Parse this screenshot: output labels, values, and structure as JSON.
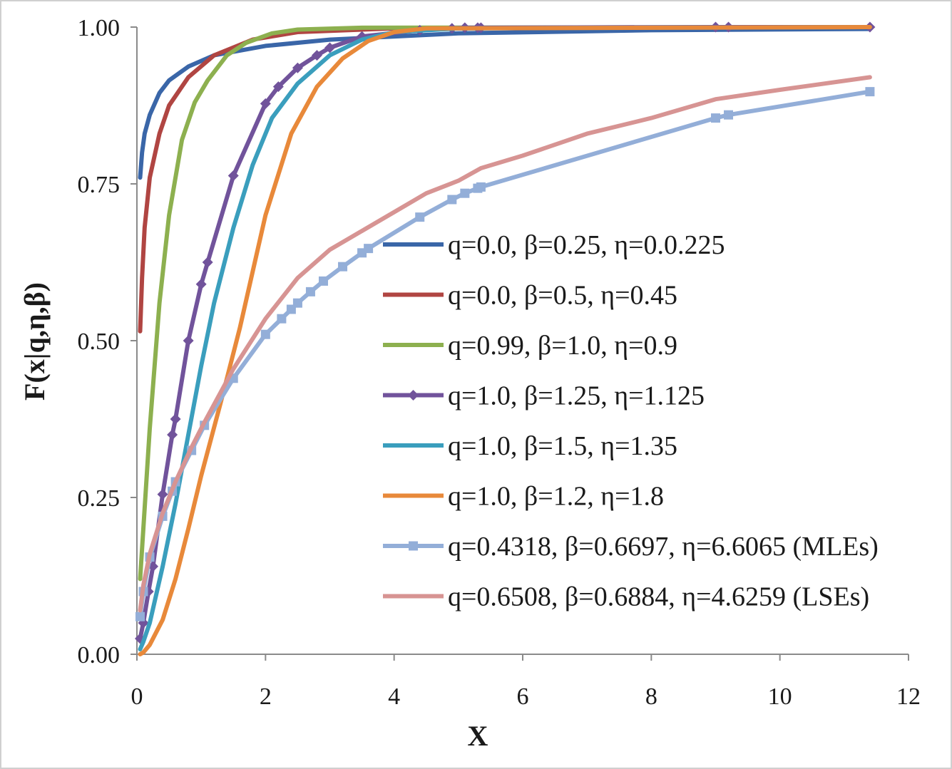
{
  "chart_data": {
    "type": "line",
    "title": "",
    "xlabel": "X",
    "ylabel": "F(x|q,η,β)",
    "xlim": [
      0,
      12
    ],
    "ylim": [
      0,
      1
    ],
    "x_ticks": [
      "0",
      "2",
      "4",
      "6",
      "8",
      "10",
      "12"
    ],
    "y_ticks": [
      "0.00",
      "0.25",
      "0.50",
      "0.75",
      "1.00"
    ],
    "grid": false,
    "legend_position": "center-right",
    "series": [
      {
        "name": "q=0.0, β=0.25, η=0.0.225",
        "color": "#3a66a8",
        "marker": "none",
        "points": [
          [
            0.05,
            0.76
          ],
          [
            0.08,
            0.8
          ],
          [
            0.12,
            0.83
          ],
          [
            0.2,
            0.86
          ],
          [
            0.35,
            0.895
          ],
          [
            0.5,
            0.915
          ],
          [
            0.8,
            0.937
          ],
          [
            1.2,
            0.955
          ],
          [
            2.0,
            0.97
          ],
          [
            3.0,
            0.98
          ],
          [
            5.0,
            0.99
          ],
          [
            8.0,
            0.995
          ],
          [
            11.4,
            0.997
          ]
        ]
      },
      {
        "name": "q=0.0, β=0.5, η=0.45",
        "color": "#b04542",
        "marker": "none",
        "points": [
          [
            0.05,
            0.515
          ],
          [
            0.08,
            0.6
          ],
          [
            0.12,
            0.68
          ],
          [
            0.2,
            0.76
          ],
          [
            0.35,
            0.83
          ],
          [
            0.5,
            0.875
          ],
          [
            0.8,
            0.92
          ],
          [
            1.2,
            0.955
          ],
          [
            1.8,
            0.98
          ],
          [
            2.5,
            0.992
          ],
          [
            4.0,
            0.998
          ],
          [
            11.4,
            1.0
          ]
        ]
      },
      {
        "name": "q=0.99, β=1.0, η=0.9",
        "color": "#8db04f",
        "marker": "none",
        "points": [
          [
            0.05,
            0.12
          ],
          [
            0.1,
            0.2
          ],
          [
            0.2,
            0.36
          ],
          [
            0.35,
            0.56
          ],
          [
            0.5,
            0.7
          ],
          [
            0.7,
            0.82
          ],
          [
            0.9,
            0.88
          ],
          [
            1.1,
            0.915
          ],
          [
            1.4,
            0.955
          ],
          [
            1.7,
            0.975
          ],
          [
            2.1,
            0.99
          ],
          [
            2.5,
            0.996
          ],
          [
            3.5,
            0.999
          ],
          [
            11.4,
            1.0
          ]
        ]
      },
      {
        "name": "q=1.0, β=1.25, η=1.125",
        "color": "#71539b",
        "marker": "diamond",
        "points": [
          [
            0.05,
            0.025
          ],
          [
            0.1,
            0.05
          ],
          [
            0.18,
            0.1
          ],
          [
            0.25,
            0.14
          ],
          [
            0.4,
            0.255
          ],
          [
            0.55,
            0.35
          ],
          [
            0.6,
            0.375
          ],
          [
            0.8,
            0.5
          ],
          [
            1.0,
            0.59
          ],
          [
            1.1,
            0.625
          ],
          [
            1.5,
            0.763
          ],
          [
            2.0,
            0.878
          ],
          [
            2.2,
            0.905
          ],
          [
            2.5,
            0.935
          ],
          [
            2.8,
            0.955
          ],
          [
            3.0,
            0.967
          ],
          [
            3.5,
            0.985
          ],
          [
            4.4,
            0.995
          ],
          [
            4.9,
            0.998
          ],
          [
            5.1,
            0.999
          ],
          [
            5.3,
            0.999
          ],
          [
            5.35,
            0.999
          ],
          [
            9.0,
            1.0
          ],
          [
            9.2,
            1.0
          ],
          [
            11.4,
            1.0
          ]
        ]
      },
      {
        "name": "q=1.0, β=1.5, η=1.35",
        "color": "#3a9ebd",
        "marker": "none",
        "points": [
          [
            0.05,
            0.008
          ],
          [
            0.1,
            0.02
          ],
          [
            0.2,
            0.05
          ],
          [
            0.4,
            0.14
          ],
          [
            0.6,
            0.24
          ],
          [
            0.8,
            0.35
          ],
          [
            1.0,
            0.46
          ],
          [
            1.2,
            0.56
          ],
          [
            1.5,
            0.68
          ],
          [
            1.8,
            0.78
          ],
          [
            2.1,
            0.855
          ],
          [
            2.5,
            0.91
          ],
          [
            3.0,
            0.955
          ],
          [
            3.5,
            0.98
          ],
          [
            4.0,
            0.992
          ],
          [
            5.0,
            0.998
          ],
          [
            11.4,
            1.0
          ]
        ]
      },
      {
        "name": "q=1.0, β=1.2, η=1.8",
        "color": "#e8893a",
        "marker": "none",
        "points": [
          [
            0.05,
            0.0
          ],
          [
            0.1,
            0.003
          ],
          [
            0.2,
            0.015
          ],
          [
            0.4,
            0.055
          ],
          [
            0.6,
            0.12
          ],
          [
            0.8,
            0.2
          ],
          [
            1.0,
            0.285
          ],
          [
            1.3,
            0.4
          ],
          [
            1.6,
            0.52
          ],
          [
            2.0,
            0.7
          ],
          [
            2.4,
            0.83
          ],
          [
            2.8,
            0.905
          ],
          [
            3.2,
            0.95
          ],
          [
            3.6,
            0.978
          ],
          [
            4.0,
            0.992
          ],
          [
            4.5,
            0.998
          ],
          [
            11.4,
            1.0
          ]
        ]
      },
      {
        "name": "q=0.4318, β=0.6697, η=6.6065 (MLEs)",
        "color": "#93aed8",
        "marker": "square",
        "points": [
          [
            0.05,
            0.06
          ],
          [
            0.1,
            0.1
          ],
          [
            0.2,
            0.155
          ],
          [
            0.4,
            0.22
          ],
          [
            0.55,
            0.26
          ],
          [
            0.6,
            0.275
          ],
          [
            0.85,
            0.325
          ],
          [
            1.05,
            0.365
          ],
          [
            1.5,
            0.44
          ],
          [
            2.0,
            0.51
          ],
          [
            2.25,
            0.535
          ],
          [
            2.4,
            0.55
          ],
          [
            2.5,
            0.56
          ],
          [
            2.7,
            0.578
          ],
          [
            2.9,
            0.595
          ],
          [
            3.2,
            0.618
          ],
          [
            3.5,
            0.64
          ],
          [
            3.6,
            0.647
          ],
          [
            4.4,
            0.697
          ],
          [
            4.9,
            0.725
          ],
          [
            5.1,
            0.735
          ],
          [
            5.3,
            0.743
          ],
          [
            5.35,
            0.745
          ],
          [
            9.0,
            0.855
          ],
          [
            9.2,
            0.86
          ],
          [
            11.4,
            0.897
          ]
        ]
      },
      {
        "name": "q=0.6508, β=0.6884, η=4.6259 (LSEs)",
        "color": "#d79493",
        "marker": "none",
        "points": [
          [
            0.05,
            0.07
          ],
          [
            0.1,
            0.11
          ],
          [
            0.2,
            0.16
          ],
          [
            0.4,
            0.225
          ],
          [
            0.6,
            0.275
          ],
          [
            0.85,
            0.33
          ],
          [
            1.05,
            0.37
          ],
          [
            1.5,
            0.455
          ],
          [
            2.0,
            0.535
          ],
          [
            2.5,
            0.6
          ],
          [
            3.0,
            0.645
          ],
          [
            3.5,
            0.675
          ],
          [
            4.0,
            0.705
          ],
          [
            4.5,
            0.735
          ],
          [
            5.0,
            0.755
          ],
          [
            5.35,
            0.775
          ],
          [
            6.0,
            0.795
          ],
          [
            7.0,
            0.83
          ],
          [
            8.0,
            0.855
          ],
          [
            9.0,
            0.885
          ],
          [
            10.0,
            0.9
          ],
          [
            11.4,
            0.92
          ]
        ]
      }
    ]
  }
}
